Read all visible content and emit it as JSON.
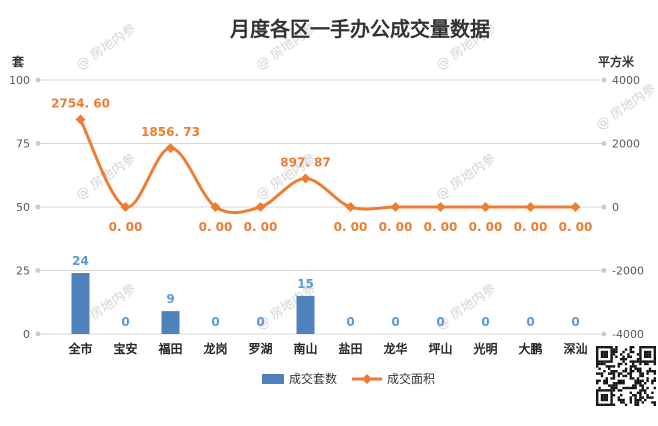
{
  "chart_data": {
    "type": "bar+line",
    "title": "月度各区一手办公成交量数据",
    "categories": [
      "全市",
      "宝安",
      "福田",
      "龙岗",
      "罗湖",
      "南山",
      "盐田",
      "龙华",
      "坪山",
      "光明",
      "大鹏",
      "深汕"
    ],
    "left_axis": {
      "unit": "套",
      "ticks": [
        "0",
        "25",
        "50",
        "75",
        "100"
      ],
      "range": [
        0,
        100
      ]
    },
    "right_axis": {
      "unit": "平方米",
      "ticks": [
        "-4000",
        "-2000",
        "0",
        "2000",
        "4000"
      ],
      "range": [
        -4000,
        4000
      ]
    },
    "series": [
      {
        "name": "成交套数",
        "type": "bar",
        "axis": "left",
        "color": "#4f81bd",
        "values": [
          24,
          0,
          9,
          0,
          0,
          15,
          0,
          0,
          0,
          0,
          0,
          0
        ],
        "labels": [
          "24",
          "0",
          "9",
          "0",
          "0",
          "15",
          "0",
          "0",
          "0",
          "0",
          "0",
          "0"
        ]
      },
      {
        "name": "成交面积",
        "type": "line",
        "axis": "right",
        "color": "#ed7d31",
        "values": [
          2754.6,
          0,
          1856.73,
          0,
          0,
          897.87,
          0,
          0,
          0,
          0,
          0,
          0
        ],
        "labels": [
          "2754. 60",
          "0. 00",
          "1856. 73",
          "0. 00",
          "0. 00",
          "897. 87",
          "0. 00",
          "0. 00",
          "0. 00",
          "0. 00",
          "0. 00",
          "0. 00"
        ]
      }
    ],
    "grid": true,
    "legend_position": "bottom",
    "watermark": "房地内参"
  }
}
